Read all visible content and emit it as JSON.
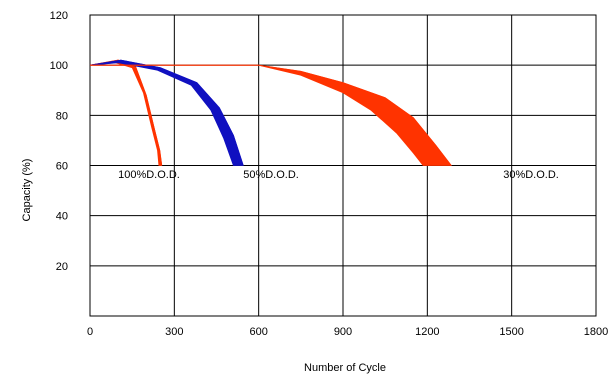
{
  "chart_data": {
    "type": "area",
    "title": "",
    "xlabel": "Number of Cycle",
    "ylabel": "Capacity (%)",
    "xlim": [
      0,
      1800
    ],
    "ylim": [
      0,
      120
    ],
    "x_ticks": [
      0,
      300,
      600,
      900,
      1200,
      1500,
      1800
    ],
    "y_ticks": [
      20,
      40,
      60,
      80,
      100,
      120
    ],
    "grid": true,
    "legend": "none",
    "series": [
      {
        "name": "100%D.O.D.",
        "color": "#ff3300",
        "upper": [
          [
            0,
            100
          ],
          [
            100,
            102
          ],
          [
            160,
            100
          ],
          [
            200,
            88
          ],
          [
            230,
            74
          ],
          [
            248,
            66
          ],
          [
            255,
            60
          ]
        ],
        "lower": [
          [
            0,
            100
          ],
          [
            90,
            101
          ],
          [
            150,
            99
          ],
          [
            190,
            89
          ],
          [
            220,
            75
          ],
          [
            240,
            66
          ],
          [
            245,
            60
          ]
        ]
      },
      {
        "name": "50%D.O.D.",
        "color": "#1010c0",
        "upper": [
          [
            0,
            100
          ],
          [
            110,
            102
          ],
          [
            250,
            99
          ],
          [
            380,
            93
          ],
          [
            460,
            83
          ],
          [
            510,
            72
          ],
          [
            545,
            60
          ]
        ],
        "lower": [
          [
            0,
            100
          ],
          [
            100,
            101
          ],
          [
            240,
            98
          ],
          [
            360,
            92
          ],
          [
            430,
            82
          ],
          [
            475,
            71
          ],
          [
            510,
            60
          ]
        ]
      },
      {
        "name": "30%D.O.D.",
        "color": "#ff3300",
        "upper": [
          [
            0,
            100
          ],
          [
            600,
            100
          ],
          [
            750,
            97.5
          ],
          [
            900,
            93
          ],
          [
            1050,
            87
          ],
          [
            1150,
            79
          ],
          [
            1230,
            68
          ],
          [
            1285,
            60
          ]
        ],
        "lower": [
          [
            0,
            100
          ],
          [
            600,
            100
          ],
          [
            750,
            96
          ],
          [
            900,
            89
          ],
          [
            1000,
            82
          ],
          [
            1090,
            73
          ],
          [
            1150,
            65
          ],
          [
            1185,
            60
          ]
        ]
      }
    ],
    "annotations": [
      {
        "text": "100%D.O.D.",
        "x": 100,
        "y": 55
      },
      {
        "text": "50%D.O.D.",
        "x": 545,
        "y": 55
      },
      {
        "text": "30%D.O.D.",
        "x": 1470,
        "y": 55
      }
    ]
  }
}
